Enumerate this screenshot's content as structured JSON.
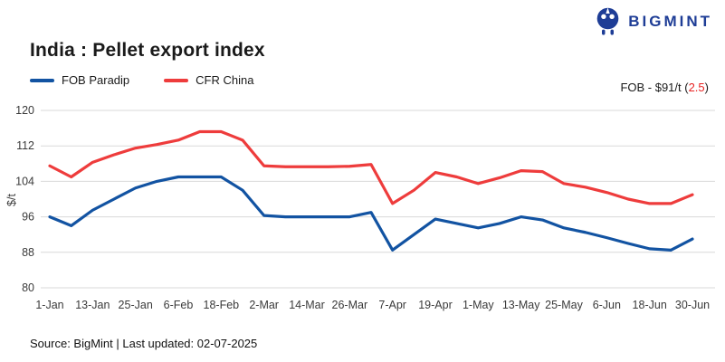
{
  "header": {
    "title": "India : Pellet export index",
    "brand": "BIGMINT"
  },
  "annotation": {
    "prefix": "FOB - $91/t (",
    "value": "2.5",
    "suffix": ")"
  },
  "footer": {
    "source": "Source: BigMint | Last updated: 02-07-2025"
  },
  "colors": {
    "series_blue": "#1253a2",
    "series_red": "#ee3c3c",
    "annotation_red": "#e82222",
    "logo_navy": "#1e3d96",
    "grid": "#d9d9d9",
    "axis_text": "#3a3a3a",
    "text": "#1a1a1a"
  },
  "chart_data": {
    "type": "line",
    "title": "India : Pellet export index",
    "ylabel": "$/t",
    "xlabel": "",
    "ylim": [
      80,
      120
    ],
    "yticks": [
      120,
      112,
      104,
      96,
      88,
      80
    ],
    "grid": true,
    "legend_position": "top-left",
    "x": [
      "1-Jan",
      "7-Jan",
      "13-Jan",
      "19-Jan",
      "25-Jan",
      "31-Jan",
      "6-Feb",
      "12-Feb",
      "18-Feb",
      "24-Feb",
      "2-Mar",
      "8-Mar",
      "14-Mar",
      "20-Mar",
      "26-Mar",
      "1-Apr",
      "7-Apr",
      "13-Apr",
      "19-Apr",
      "25-Apr",
      "1-May",
      "7-May",
      "13-May",
      "19-May",
      "25-May",
      "31-May",
      "6-Jun",
      "12-Jun",
      "18-Jun",
      "24-Jun",
      "30-Jun"
    ],
    "x_tick_labels": [
      "1-Jan",
      "13-Jan",
      "25-Jan",
      "6-Feb",
      "18-Feb",
      "2-Mar",
      "14-Mar",
      "26-Mar",
      "7-Apr",
      "19-Apr",
      "1-May",
      "13-May",
      "25-May",
      "6-Jun",
      "18-Jun",
      "30-Jun"
    ],
    "series": [
      {
        "name": "FOB Paradip",
        "color": "#1253a2",
        "values": [
          96,
          94,
          97.5,
          100,
          102.5,
          104,
          105,
          105,
          105,
          102,
          96.3,
          96,
          96,
          96,
          96,
          97,
          88.5,
          92,
          95.5,
          94.5,
          93.5,
          94.5,
          96,
          95.3,
          93.5,
          92.5,
          91.3,
          90,
          88.8,
          88.5,
          91
        ]
      },
      {
        "name": "CFR China",
        "color": "#ee3c3c",
        "values": [
          107.5,
          105,
          108.3,
          110,
          111.5,
          112.3,
          113.3,
          115.2,
          115.2,
          113.3,
          107.5,
          107.3,
          107.3,
          107.3,
          107.4,
          107.8,
          99,
          102,
          106,
          105,
          103.5,
          104.8,
          106.4,
          106.2,
          103.5,
          102.7,
          101.5,
          100,
          99,
          99,
          101
        ]
      }
    ]
  }
}
